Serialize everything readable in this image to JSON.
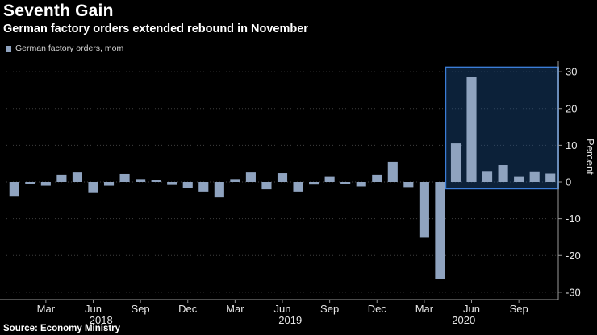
{
  "header": {
    "title": "Seventh Gain",
    "subtitle": "German factory orders extended rebound in November"
  },
  "legend": {
    "label": "German factory orders, mom"
  },
  "axis": {
    "y_label": "Percent"
  },
  "footer": {
    "source": "Source: Economy Ministry"
  },
  "chart_data": {
    "type": "bar",
    "title": "Seventh Gain",
    "subtitle": "German factory orders extended rebound in November",
    "legend_entries": [
      "German factory orders, mom"
    ],
    "ylabel": "Percent",
    "ylim": [
      -32,
      32
    ],
    "yticks": [
      30,
      20,
      10,
      0,
      -10,
      -20,
      -30
    ],
    "grid": "dotted-horizontal",
    "x": [
      "Jan 2018",
      "Feb 2018",
      "Mar 2018",
      "Apr 2018",
      "May 2018",
      "Jun 2018",
      "Jul 2018",
      "Aug 2018",
      "Sep 2018",
      "Oct 2018",
      "Nov 2018",
      "Dec 2018",
      "Jan 2019",
      "Feb 2019",
      "Mar 2019",
      "Apr 2019",
      "May 2019",
      "Jun 2019",
      "Jul 2019",
      "Aug 2019",
      "Sep 2019",
      "Oct 2019",
      "Nov 2019",
      "Dec 2019",
      "Jan 2020",
      "Feb 2020",
      "Mar 2020",
      "Apr 2020",
      "May 2020",
      "Jun 2020",
      "Jul 2020",
      "Aug 2020",
      "Sep 2020",
      "Oct 2020",
      "Nov 2020"
    ],
    "values": [
      -4.0,
      -0.6,
      -1.0,
      2.0,
      2.6,
      -3.0,
      -1.0,
      2.2,
      0.8,
      0.5,
      -0.8,
      -1.6,
      -2.6,
      -4.2,
      0.8,
      2.6,
      -2.0,
      2.4,
      -2.6,
      -0.7,
      1.4,
      -0.5,
      -1.2,
      2.0,
      5.5,
      -1.4,
      -15.0,
      -26.5,
      10.5,
      28.5,
      3.0,
      4.6,
      1.4,
      2.9,
      2.3
    ],
    "xticks": [
      {
        "index": 2,
        "label": "Mar"
      },
      {
        "index": 5,
        "label": "Jun"
      },
      {
        "index": 8,
        "label": "Sep"
      },
      {
        "index": 11,
        "label": "Dec"
      },
      {
        "index": 14,
        "label": "Mar"
      },
      {
        "index": 17,
        "label": "Jun"
      },
      {
        "index": 20,
        "label": "Sep"
      },
      {
        "index": 23,
        "label": "Dec"
      },
      {
        "index": 26,
        "label": "Mar"
      },
      {
        "index": 29,
        "label": "Jun"
      },
      {
        "index": 32,
        "label": "Sep"
      }
    ],
    "year_labels": [
      {
        "index": 5.5,
        "label": "2018"
      },
      {
        "index": 17.5,
        "label": "2019"
      },
      {
        "index": 28.5,
        "label": "2020"
      }
    ],
    "highlight": {
      "start_index": 28,
      "end_index": 34,
      "y_top": 31.2,
      "y_bottom": -1.8
    },
    "colors": {
      "bar": "#8fa3bf",
      "highlight_fill": "#1d4e89",
      "highlight_border": "#3b7dd8",
      "axis": "#9a9a9a",
      "grid": "#3f3f3f",
      "tick_text": "#e6e6e6",
      "background": "#000000"
    },
    "source": "Source: Economy Ministry"
  }
}
